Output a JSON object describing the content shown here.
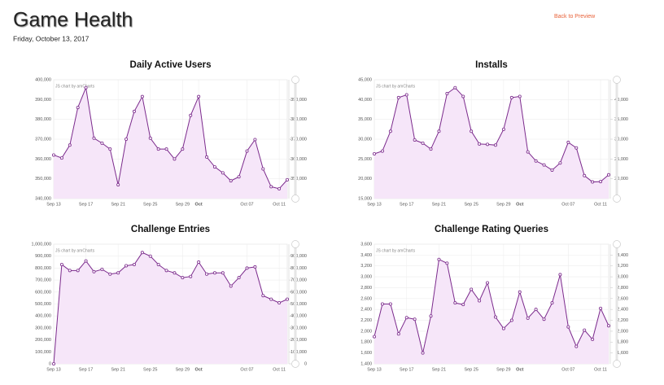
{
  "header": {
    "title": "Game Health",
    "date": "Friday, October 13, 2017",
    "link": "Back to Preview"
  },
  "chart_data": [
    {
      "type": "area",
      "title": "Daily Active Users",
      "credit": "JS chart by amCharts",
      "color": "#7b2a8c",
      "fill": "#f6e6f9",
      "grid": true,
      "categories": [
        "Sep 13",
        null,
        null,
        null,
        "Sep 17",
        null,
        null,
        null,
        "Sep 21",
        null,
        null,
        null,
        "Sep 25",
        null,
        null,
        null,
        "Sep 29",
        null,
        "Oct",
        null,
        null,
        null,
        null,
        null,
        "Oct 07",
        null,
        null,
        null,
        "Oct 11",
        null
      ],
      "values": [
        362000,
        360500,
        367000,
        386000,
        396000,
        370500,
        368000,
        365000,
        347000,
        370000,
        384000,
        391500,
        370500,
        365000,
        365000,
        360000,
        365000,
        382000,
        391500,
        361000,
        356000,
        353000,
        349000,
        351000,
        364000,
        369800,
        355000,
        346000,
        345000,
        349500
      ],
      "ylim": [
        340000,
        400000
      ],
      "yticks": [
        {
          "value": 340000,
          "label": "340,000"
        },
        {
          "value": 350000,
          "label": "350,000"
        },
        {
          "value": 360000,
          "label": "360,000"
        },
        {
          "value": 370000,
          "label": "370,000"
        },
        {
          "value": 380000,
          "label": "380,000"
        },
        {
          "value": 390000,
          "label": "390,000"
        },
        {
          "value": 400000,
          "label": "400,000"
        }
      ],
      "y2lim": [
        340000,
        400000
      ],
      "y2ticks": [
        {
          "value": 350000,
          "label": "350,000"
        },
        {
          "value": 360000,
          "label": "360,000"
        },
        {
          "value": 370000,
          "label": "370,000"
        },
        {
          "value": 380000,
          "label": "380,000"
        },
        {
          "value": 390000,
          "label": "390,000"
        }
      ]
    },
    {
      "type": "area",
      "title": "Installs",
      "credit": "JS chart by amCharts",
      "color": "#7b2a8c",
      "fill": "#f6e6f9",
      "grid": true,
      "categories": [
        "Sep 13",
        null,
        null,
        null,
        "Sep 17",
        null,
        null,
        null,
        "Sep 21",
        null,
        null,
        null,
        "Sep 25",
        null,
        null,
        null,
        "Sep 29",
        null,
        "Oct",
        null,
        null,
        null,
        null,
        null,
        "Oct 07",
        null,
        null,
        null,
        "Oct 11",
        null
      ],
      "values": [
        26300,
        27000,
        32000,
        40500,
        41200,
        29800,
        29000,
        27500,
        32000,
        41500,
        43000,
        40800,
        32000,
        28800,
        28700,
        28500,
        32500,
        40500,
        40800,
        26800,
        24500,
        23500,
        22200,
        24000,
        29200,
        27800,
        20800,
        19200,
        19300,
        21000
      ],
      "ylim": [
        15000,
        45000
      ],
      "yticks": [
        {
          "value": 15000,
          "label": "15,000"
        },
        {
          "value": 20000,
          "label": "20,000"
        },
        {
          "value": 25000,
          "label": "25,000"
        },
        {
          "value": 30000,
          "label": "30,000"
        },
        {
          "value": 35000,
          "label": "35,000"
        },
        {
          "value": 40000,
          "label": "40,000"
        },
        {
          "value": 45000,
          "label": "45,000"
        }
      ],
      "y2lim": [
        15000,
        45000
      ],
      "y2ticks": [
        {
          "value": 20000,
          "label": "20,000"
        },
        {
          "value": 25000,
          "label": "25,000"
        },
        {
          "value": 30000,
          "label": "30,000"
        },
        {
          "value": 35000,
          "label": "35,000"
        },
        {
          "value": 40000,
          "label": "40,000"
        }
      ]
    },
    {
      "type": "area",
      "title": "Challenge Entries",
      "credit": "JS chart by amCharts",
      "color": "#7b2a8c",
      "fill": "#f6e6f9",
      "grid": true,
      "categories": [
        "Sep 13",
        null,
        null,
        null,
        "Sep 17",
        null,
        null,
        null,
        "Sep 21",
        null,
        null,
        null,
        "Sep 25",
        null,
        null,
        null,
        "Sep 29",
        null,
        "Oct",
        null,
        null,
        null,
        null,
        null,
        "Oct 07",
        null,
        null,
        null,
        "Oct 11",
        null
      ],
      "values": [
        0,
        830000,
        780000,
        780000,
        860000,
        770000,
        790000,
        750000,
        760000,
        820000,
        830000,
        930000,
        900000,
        830000,
        780000,
        760000,
        720000,
        730000,
        850000,
        750000,
        760000,
        760000,
        650000,
        720000,
        800000,
        810000,
        570000,
        540000,
        510000,
        540000
      ],
      "ylim": [
        0,
        1000000
      ],
      "yticks": [
        0,
        {
          "value": 100000,
          "label": "100,000"
        },
        {
          "value": 200000,
          "label": "200,000"
        },
        {
          "value": 300000,
          "label": "300,000"
        },
        {
          "value": 400000,
          "label": "400,000"
        },
        {
          "value": 500000,
          "label": "500,000"
        },
        {
          "value": 600000,
          "label": "600,000"
        },
        {
          "value": 700000,
          "label": "700,000"
        },
        {
          "value": 800000,
          "label": "800,000"
        },
        {
          "value": 900000,
          "label": "900,000"
        },
        {
          "value": 1000000,
          "label": "1,000,000"
        }
      ],
      "y2lim": [
        0,
        1000000
      ],
      "y2ticks": [
        0,
        {
          "value": 100000,
          "label": "100,000"
        },
        {
          "value": 200000,
          "label": "200,000"
        },
        {
          "value": 300000,
          "label": "300,000"
        },
        {
          "value": 400000,
          "label": "400,000"
        },
        {
          "value": 500000,
          "label": "500,000"
        },
        {
          "value": 600000,
          "label": "600,000"
        },
        {
          "value": 700000,
          "label": "700,000"
        },
        {
          "value": 800000,
          "label": "800,000"
        },
        {
          "value": 900000,
          "label": "900,000"
        }
      ]
    },
    {
      "type": "area",
      "title": "Challenge Rating Queries",
      "credit": "JS chart by amCharts",
      "color": "#7b2a8c",
      "fill": "#f6e6f9",
      "grid": true,
      "categories": [
        "Sep 13",
        null,
        null,
        null,
        "Sep 17",
        null,
        null,
        null,
        "Sep 21",
        null,
        null,
        null,
        "Sep 25",
        null,
        null,
        null,
        "Sep 29",
        null,
        "Oct",
        null,
        null,
        null,
        null,
        null,
        "Oct 07",
        null,
        null,
        null,
        "Oct 11",
        null
      ],
      "values": [
        1900,
        2500,
        2500,
        1950,
        2250,
        2220,
        1600,
        2280,
        3320,
        3250,
        2520,
        2490,
        2770,
        2560,
        2890,
        2260,
        2050,
        2200,
        2720,
        2240,
        2400,
        2220,
        2520,
        3040,
        2080,
        1720,
        2020,
        1850,
        2420,
        2100
      ],
      "ylim": [
        1400,
        3600
      ],
      "yticks": [
        {
          "value": 1400,
          "label": "1,400"
        },
        {
          "value": 1600,
          "label": "1,600"
        },
        {
          "value": 1800,
          "label": "1,800"
        },
        {
          "value": 2000,
          "label": "2,000"
        },
        {
          "value": 2200,
          "label": "2,200"
        },
        {
          "value": 2400,
          "label": "2,400"
        },
        {
          "value": 2600,
          "label": "2,600"
        },
        {
          "value": 2800,
          "label": "2,800"
        },
        {
          "value": 3000,
          "label": "3,000"
        },
        {
          "value": 3200,
          "label": "3,200"
        },
        {
          "value": 3400,
          "label": "3,400"
        },
        {
          "value": 3600,
          "label": "3,600"
        }
      ],
      "y2lim": [
        1400,
        3600
      ],
      "y2ticks": [
        {
          "value": 1600,
          "label": "1,600"
        },
        {
          "value": 1800,
          "label": "1,800"
        },
        {
          "value": 2000,
          "label": "2,000"
        },
        {
          "value": 2200,
          "label": "2,200"
        },
        {
          "value": 2400,
          "label": "2,400"
        },
        {
          "value": 2600,
          "label": "2,600"
        },
        {
          "value": 2800,
          "label": "2,800"
        },
        {
          "value": 3000,
          "label": "3,000"
        },
        {
          "value": 3200,
          "label": "3,200"
        },
        {
          "value": 3400,
          "label": "3,400"
        }
      ]
    }
  ]
}
